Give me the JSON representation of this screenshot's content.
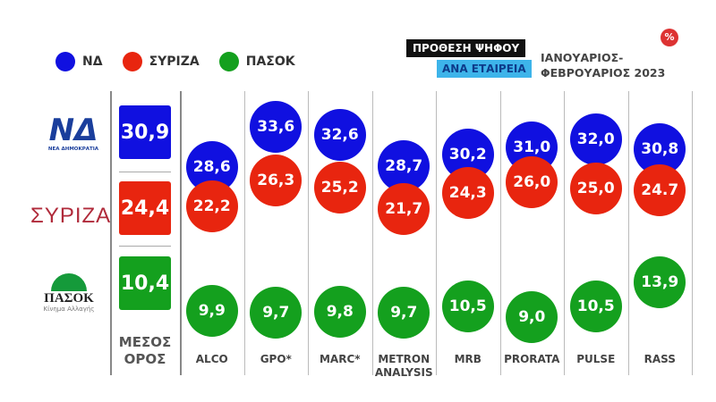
{
  "header": {
    "tag_line1": "ΠΡΟΘΕΣΗ ΨΗΦΟΥ",
    "tag_line2": "ΑΝΑ ΕΤΑΙΡΕΙΑ",
    "period_line1": "ΙΑΝΟΥΑΡΙΟΣ-",
    "period_line2": "ΦΕΒΡΟΥΑΡΙΟΣ 2023",
    "percent_badge": "%"
  },
  "logos": {
    "nd": {
      "mark": "ΝΔ",
      "sub": "ΝΕΑ ΔΗΜΟΚΡΑΤΙΑ"
    },
    "syriza": {
      "mark": "ΣΥΡΙΖΑ"
    },
    "pasok": {
      "mark": "ΠΑΣΟΚ",
      "sub": "Κίνημα Αλλαγής"
    }
  },
  "chart_data": {
    "type": "scatter",
    "legend_placement": "top-left",
    "categories": [
      "ALCO",
      "GPO*",
      "MARC*",
      "METRON ANALYSIS",
      "MRB",
      "PRORATA",
      "PULSE",
      "RASS"
    ],
    "category_lines": [
      [
        "ALCO"
      ],
      [
        "GPO*"
      ],
      [
        "MARC*"
      ],
      [
        "METRON",
        "ANALYSIS"
      ],
      [
        "MRB"
      ],
      [
        "PRORATA"
      ],
      [
        "PULSE"
      ],
      [
        "RASS"
      ]
    ],
    "average_label": [
      "ΜΕΣΟΣ",
      "ΟΡΟΣ"
    ],
    "series": [
      {
        "name": "ΝΔ",
        "color": "#1010e0",
        "average": "30,9",
        "values": [
          28.6,
          33.6,
          32.6,
          28.7,
          30.2,
          31.0,
          32.0,
          30.8
        ],
        "labels": [
          "28,6",
          "33,6",
          "32,6",
          "28,7",
          "30,2",
          "31,0",
          "32,0",
          "30,8"
        ]
      },
      {
        "name": "ΣΥΡΙΖΑ",
        "color": "#e8250f",
        "average": "24,4",
        "values": [
          22.2,
          26.3,
          25.2,
          21.7,
          24.3,
          26.0,
          25.0,
          24.7
        ],
        "labels": [
          "22,2",
          "26,3",
          "25,2",
          "21,7",
          "24,3",
          "26,0",
          "25,0",
          "24.7"
        ]
      },
      {
        "name": "ΠΑΣΟΚ",
        "color": "#14a01e",
        "average": "10,4",
        "values": [
          9.9,
          9.7,
          9.8,
          9.7,
          10.5,
          9.0,
          10.5,
          13.9
        ],
        "labels": [
          "9,9",
          "9,7",
          "9,8",
          "9,7",
          "10,5",
          "9,0",
          "10,5",
          "13,9"
        ]
      }
    ]
  }
}
